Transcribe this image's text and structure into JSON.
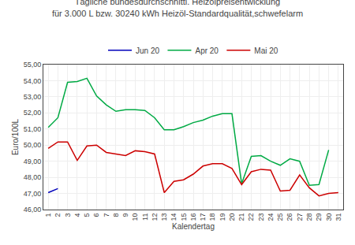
{
  "chart_data": {
    "type": "line",
    "title": "Tägliche bundesdurchschnittl. Heizölpreisentwicklung",
    "subtitle": "für 3.000 L bzw. 30240 kWh Heizöl-Standardqualität,schwefelarm",
    "xlabel": "Kalendertag",
    "ylabel": "Euro/100L",
    "x": [
      1,
      2,
      3,
      4,
      5,
      6,
      7,
      8,
      9,
      10,
      11,
      12,
      13,
      14,
      15,
      16,
      17,
      18,
      19,
      20,
      21,
      22,
      23,
      24,
      25,
      26,
      27,
      28,
      29,
      30,
      31
    ],
    "series": [
      {
        "name": "Jun 20",
        "color": "#0000bb",
        "values": [
          47.05,
          47.3,
          null,
          null,
          null,
          null,
          null,
          null,
          null,
          null,
          null,
          null,
          null,
          null,
          null,
          null,
          null,
          null,
          null,
          null,
          null,
          null,
          null,
          null,
          null,
          null,
          null,
          null,
          null,
          null,
          null
        ]
      },
      {
        "name": "Apr 20",
        "color": "#00aa44",
        "values": [
          51.1,
          51.7,
          53.9,
          53.95,
          54.15,
          53.05,
          52.5,
          52.1,
          52.2,
          52.2,
          52.15,
          51.7,
          50.95,
          50.95,
          51.15,
          51.4,
          51.55,
          51.8,
          51.95,
          51.95,
          47.6,
          49.3,
          49.35,
          49.0,
          48.75,
          49.15,
          49.0,
          47.5,
          47.55,
          49.7,
          null
        ]
      },
      {
        "name": "Mai 20",
        "color": "#cc0000",
        "values": [
          49.8,
          50.2,
          50.2,
          49.05,
          49.95,
          50.0,
          49.55,
          49.45,
          49.35,
          49.65,
          49.6,
          49.45,
          47.05,
          47.75,
          47.85,
          48.2,
          48.7,
          48.85,
          48.85,
          48.55,
          47.55,
          48.35,
          48.5,
          48.45,
          47.15,
          47.2,
          48.15,
          47.35,
          46.85,
          47.0,
          47.05
        ]
      }
    ],
    "xlim": [
      0.5,
      31.5
    ],
    "xticks": [
      1,
      2,
      3,
      4,
      5,
      6,
      7,
      8,
      9,
      10,
      11,
      12,
      13,
      14,
      15,
      16,
      17,
      18,
      19,
      20,
      21,
      22,
      23,
      24,
      25,
      26,
      27,
      28,
      29,
      30,
      31
    ],
    "ylim": [
      46.0,
      55.0
    ],
    "yticks": [
      {
        "value": 46.0,
        "label": "46,00"
      },
      {
        "value": 47.0,
        "label": "47,00"
      },
      {
        "value": 48.0,
        "label": "48,00"
      },
      {
        "value": 49.0,
        "label": "49,00"
      },
      {
        "value": 50.0,
        "label": "50,00"
      },
      {
        "value": 51.0,
        "label": "51,00"
      },
      {
        "value": 52.0,
        "label": "52,00"
      },
      {
        "value": 53.0,
        "label": "53,00"
      },
      {
        "value": 54.0,
        "label": "54,00"
      },
      {
        "value": 55.0,
        "label": "55,00"
      }
    ],
    "grid": true,
    "legend": "upper center"
  }
}
